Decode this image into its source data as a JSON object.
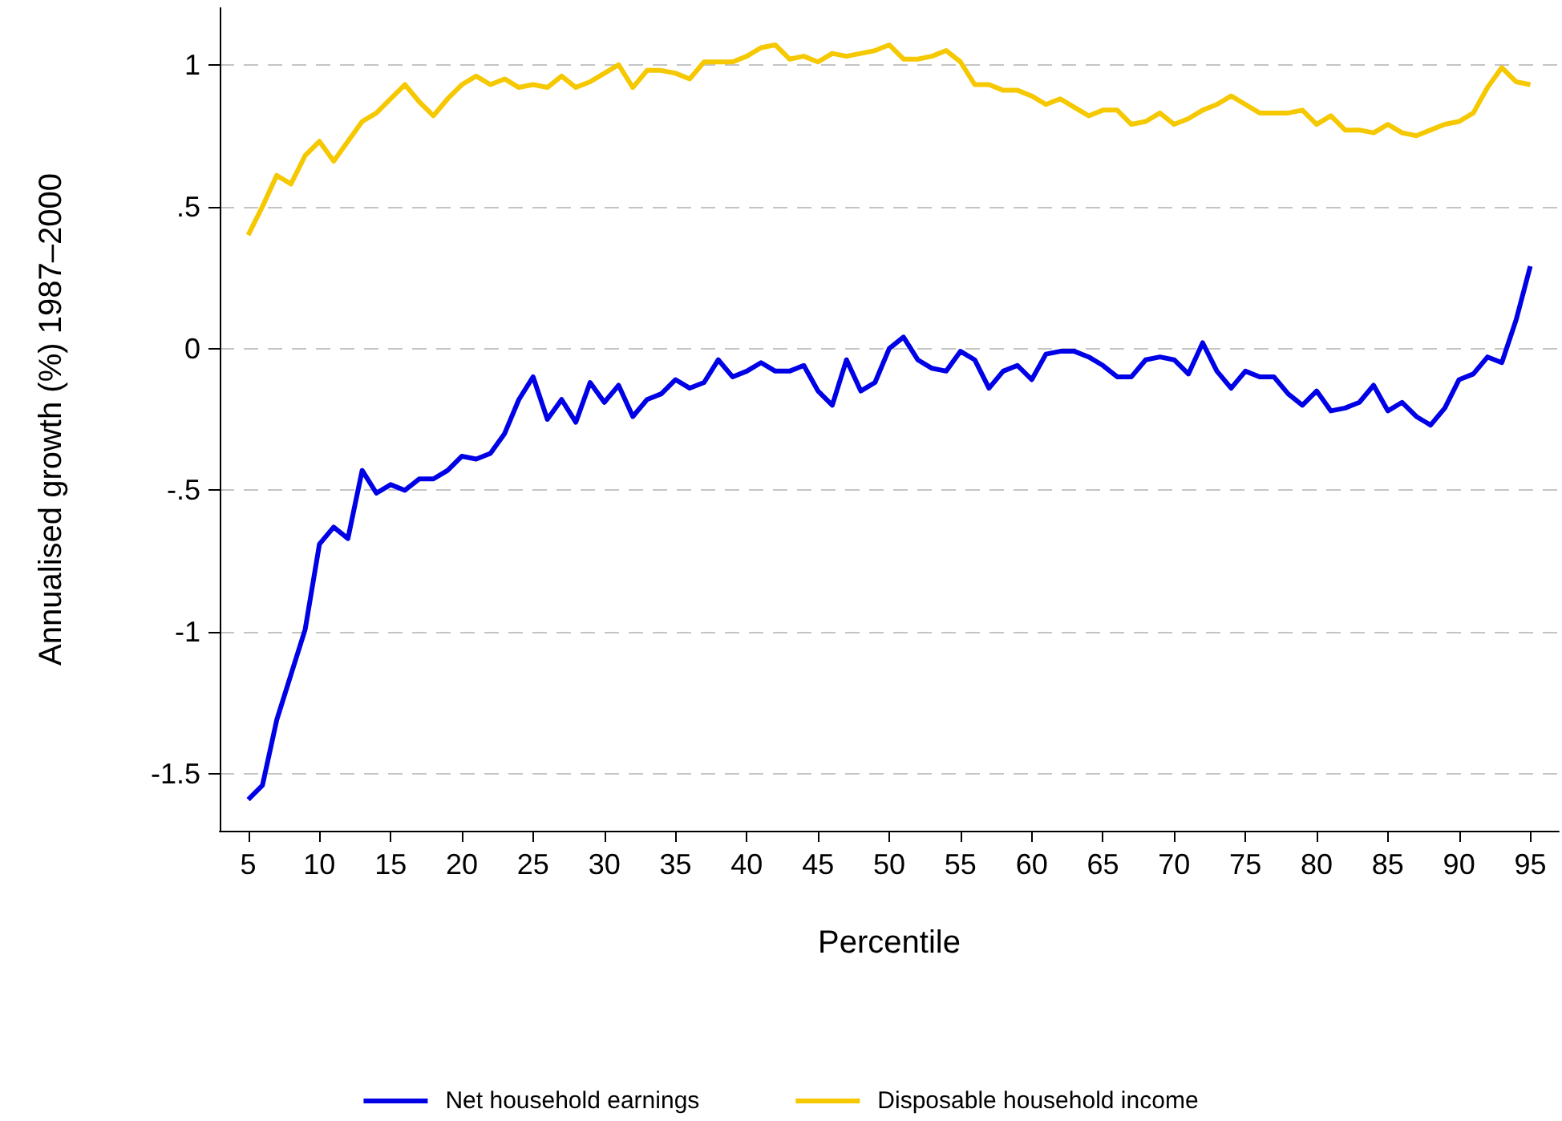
{
  "chart_data": {
    "type": "line",
    "xlabel": "Percentile",
    "ylabel": "Annualised growth (%) 1987–2000",
    "x": [
      5,
      6,
      7,
      8,
      9,
      10,
      11,
      12,
      13,
      14,
      15,
      16,
      17,
      18,
      19,
      20,
      21,
      22,
      23,
      24,
      25,
      26,
      27,
      28,
      29,
      30,
      31,
      32,
      33,
      34,
      35,
      36,
      37,
      38,
      39,
      40,
      41,
      42,
      43,
      44,
      45,
      46,
      47,
      48,
      49,
      50,
      51,
      52,
      53,
      54,
      55,
      56,
      57,
      58,
      59,
      60,
      61,
      62,
      63,
      64,
      65,
      66,
      67,
      68,
      69,
      70,
      71,
      72,
      73,
      74,
      75,
      76,
      77,
      78,
      79,
      80,
      81,
      82,
      83,
      84,
      85,
      86,
      87,
      88,
      89,
      90,
      91,
      92,
      93,
      94,
      95
    ],
    "series": [
      {
        "name": "Net household earnings",
        "color": "#0000e6",
        "values": [
          -1.59,
          -1.54,
          -1.31,
          -1.15,
          -0.99,
          -0.69,
          -0.63,
          -0.67,
          -0.43,
          -0.51,
          -0.48,
          -0.5,
          -0.46,
          -0.46,
          -0.43,
          -0.38,
          -0.39,
          -0.37,
          -0.3,
          -0.18,
          -0.1,
          -0.25,
          -0.18,
          -0.26,
          -0.12,
          -0.19,
          -0.13,
          -0.24,
          -0.18,
          -0.16,
          -0.11,
          -0.14,
          -0.12,
          -0.04,
          -0.1,
          -0.08,
          -0.05,
          -0.08,
          -0.08,
          -0.06,
          -0.15,
          -0.2,
          -0.04,
          -0.15,
          -0.12,
          0,
          0.04,
          -0.04,
          -0.07,
          -0.08,
          -0.01,
          -0.04,
          -0.14,
          -0.08,
          -0.06,
          -0.11,
          -0.02,
          -0.01,
          -0.01,
          -0.03,
          -0.06,
          -0.1,
          -0.1,
          -0.04,
          -0.03,
          -0.04,
          -0.09,
          0.02,
          -0.08,
          -0.14,
          -0.08,
          -0.1,
          -0.1,
          -0.16,
          -0.2,
          -0.15,
          -0.22,
          -0.21,
          -0.19,
          -0.13,
          -0.22,
          -0.19,
          -0.24,
          -0.27,
          -0.21,
          -0.11,
          -0.09,
          -0.03,
          -0.05,
          0.1,
          0.29
        ]
      },
      {
        "name": "Disposable household income",
        "color": "#f5c800",
        "values": [
          0.4,
          0.5,
          0.61,
          0.58,
          0.68,
          0.73,
          0.66,
          0.73,
          0.8,
          0.83,
          0.88,
          0.93,
          0.87,
          0.82,
          0.88,
          0.93,
          0.96,
          0.93,
          0.95,
          0.92,
          0.93,
          0.92,
          0.96,
          0.92,
          0.94,
          0.97,
          1.0,
          0.92,
          0.98,
          0.98,
          0.97,
          0.95,
          1.01,
          1.01,
          1.01,
          1.03,
          1.06,
          1.07,
          1.02,
          1.03,
          1.01,
          1.04,
          1.03,
          1.04,
          1.05,
          1.07,
          1.02,
          1.02,
          1.03,
          1.05,
          1.01,
          0.93,
          0.93,
          0.91,
          0.91,
          0.89,
          0.86,
          0.88,
          0.85,
          0.82,
          0.84,
          0.84,
          0.79,
          0.8,
          0.83,
          0.79,
          0.81,
          0.84,
          0.86,
          0.89,
          0.86,
          0.83,
          0.83,
          0.83,
          0.84,
          0.79,
          0.82,
          0.77,
          0.77,
          0.76,
          0.79,
          0.76,
          0.75,
          0.77,
          0.79,
          0.8,
          0.83,
          0.92,
          0.99,
          0.94,
          0.93
        ]
      }
    ],
    "xlim": [
      3,
      97
    ],
    "xticks": [
      5,
      10,
      15,
      20,
      25,
      30,
      35,
      40,
      45,
      50,
      55,
      60,
      65,
      70,
      75,
      80,
      85,
      90,
      95
    ],
    "ylim": [
      -1.7,
      1.2
    ],
    "yticks": [
      {
        "value": -1.5,
        "label": "-1.5"
      },
      -1,
      {
        "value": -0.5,
        "label": "-.5"
      },
      0,
      {
        "value": 0.5,
        "label": ".5"
      },
      1
    ],
    "grid": "y",
    "legend": "bottom",
    "marker": "none",
    "line_style": "solid"
  }
}
